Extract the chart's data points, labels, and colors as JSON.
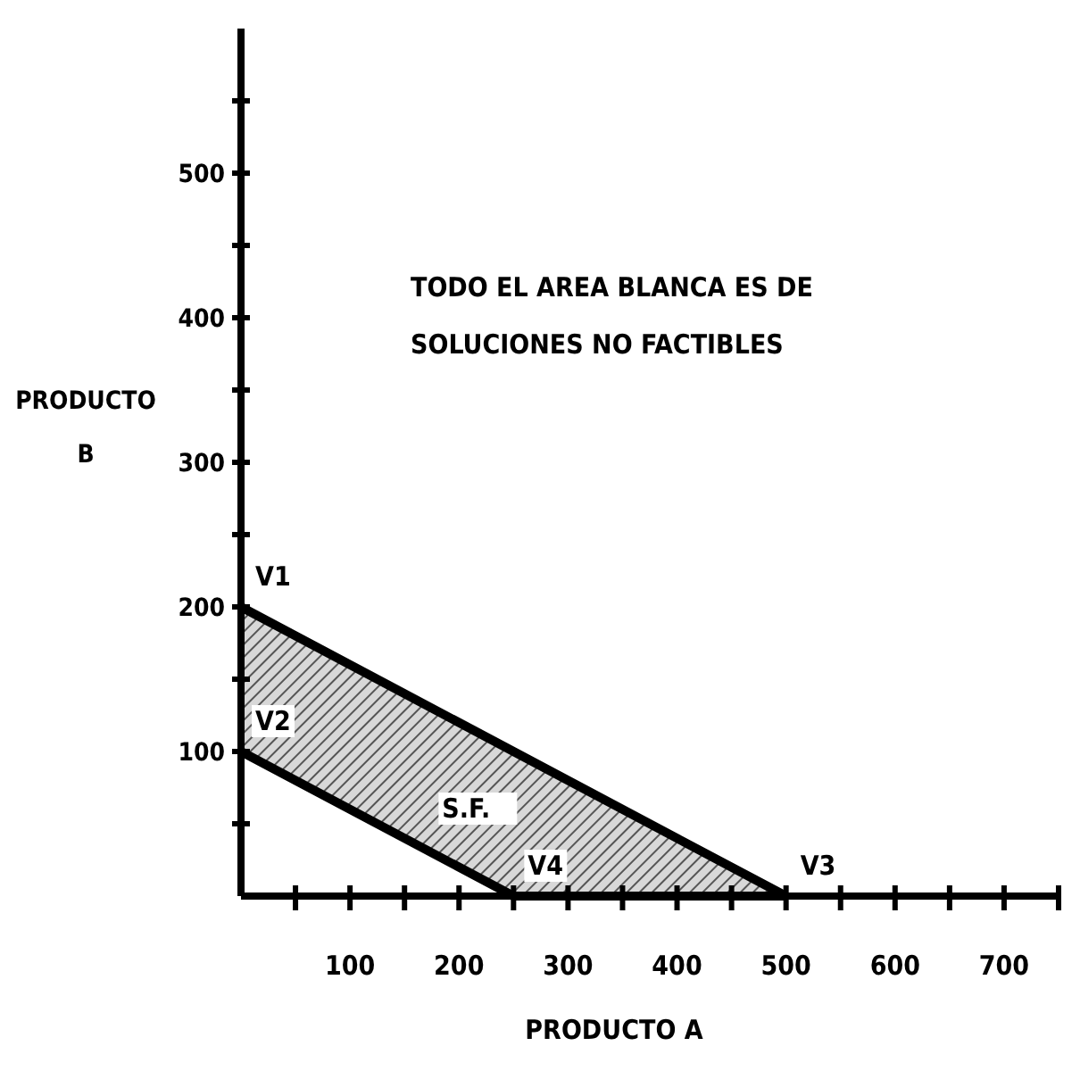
{
  "chart_data": {
    "type": "line",
    "xlabel": "PRODUCTO A",
    "ylabel": "PRODUCTO B",
    "xlim": [
      0,
      750
    ],
    "ylim": [
      0,
      600
    ],
    "xticks": [
      {
        "value": 50,
        "label": null
      },
      100,
      {
        "value": 150,
        "label": null
      },
      200,
      {
        "value": 250,
        "label": null
      },
      300,
      {
        "value": 350,
        "label": null
      },
      400,
      {
        "value": 450,
        "label": null
      },
      500,
      {
        "value": 550,
        "label": null
      },
      600,
      {
        "value": 650,
        "label": null
      },
      700,
      {
        "value": 750,
        "label": null
      }
    ],
    "yticks": [
      {
        "value": 50,
        "label": null
      },
      100,
      {
        "value": 150,
        "label": null
      },
      200,
      {
        "value": 250,
        "label": null
      },
      300,
      {
        "value": 350,
        "label": null
      },
      400,
      {
        "value": 450,
        "label": null
      },
      500,
      {
        "value": 550,
        "label": null
      }
    ],
    "series": [
      {
        "color": "#000000",
        "x": [
          0,
          250,
          500
        ],
        "values": [
          200,
          100,
          0
        ],
        "lower": [
          100,
          0,
          0
        ],
        "upper": [
          200,
          100,
          0
        ]
      }
    ],
    "annotations": [
      "TODO EL AREA BLANCA ES DE\nSOLUCIONES NO FACTIBLES",
      {
        "text": "V1",
        "x": 0,
        "y": 200
      },
      {
        "text": "V2",
        "x": 0,
        "y": 100
      },
      "S.F.",
      {
        "text": "V4",
        "x": 250,
        "y": 0
      },
      {
        "text": "V3",
        "x": 500,
        "y": 0
      }
    ]
  }
}
